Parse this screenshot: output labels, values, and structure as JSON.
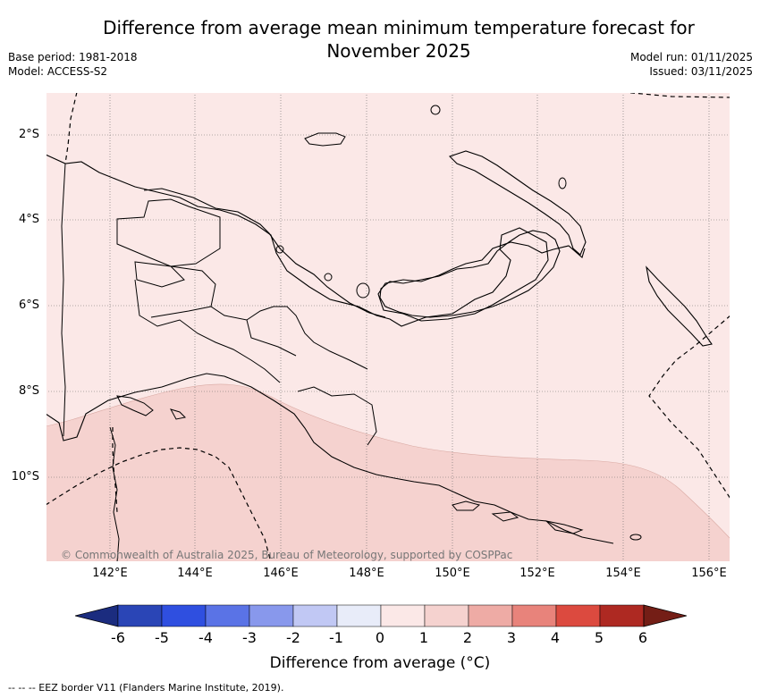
{
  "title": "Difference from average mean minimum temperature forecast for November 2025",
  "base_period": "Base period: 1981-2018",
  "model": "Model: ACCESS-S2",
  "model_run": "Model run: 01/11/2025",
  "issued": "Issued: 03/11/2025",
  "credit": "© Commonwealth of Australia 2025, Bureau of Meteorology, supported by COSPPac",
  "lat_ticks": [
    "2°S",
    "4°S",
    "6°S",
    "8°S",
    "10°S"
  ],
  "lon_ticks": [
    "142°E",
    "144°E",
    "146°E",
    "148°E",
    "150°E",
    "152°E",
    "154°E",
    "156°E"
  ],
  "colorbar": {
    "title": "Difference from average (°C)",
    "labels": [
      "-6",
      "-5",
      "-4",
      "-3",
      "-2",
      "-1",
      "0",
      "1",
      "2",
      "3",
      "4",
      "5",
      "6"
    ],
    "colors": [
      "#1b2c7f",
      "#2a45b6",
      "#2f4fe0",
      "#5a73e6",
      "#8898ec",
      "#c1c8f4",
      "#e8ecf9",
      "#fbe8e7",
      "#f5d2cf",
      "#eeaba5",
      "#e8837b",
      "#dc4a3f",
      "#ae2922",
      "#741e16"
    ]
  },
  "footnote": "--  --  -- EEZ border V11 (Flanders Marine Institute, 2019).",
  "map": {
    "fill_north": "#fbe8e7",
    "fill_south": "#f5d2cf",
    "north_category": "0 to 1",
    "south_category": "1 to 2"
  }
}
